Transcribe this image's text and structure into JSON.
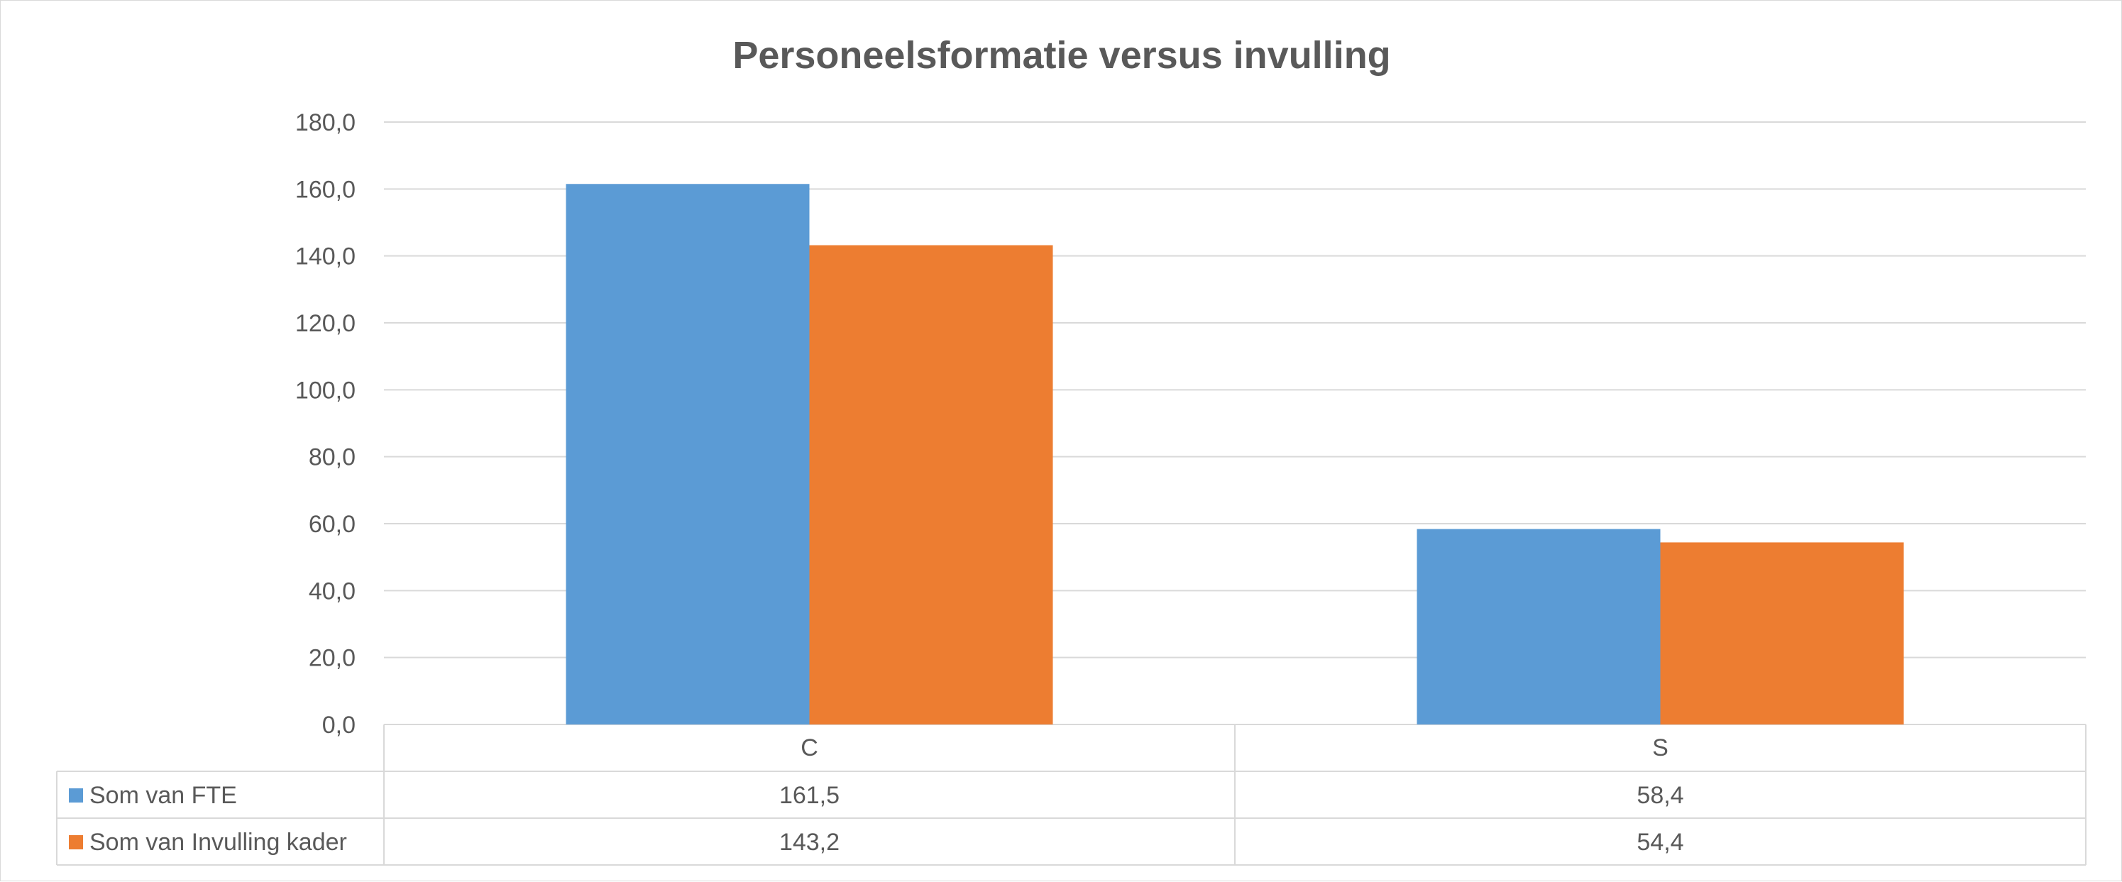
{
  "chart_data": {
    "type": "bar",
    "title": "Personeelsformatie versus invulling",
    "xlabel": "",
    "ylabel": "",
    "categories": [
      "C",
      "S"
    ],
    "series": [
      {
        "name": "Som van FTE",
        "values": [
          161.5,
          58.4
        ],
        "labels": [
          "161,5",
          "58,4"
        ],
        "color": "#5b9bd5"
      },
      {
        "name": "Som van Invulling kader",
        "values": [
          143.2,
          54.4
        ],
        "labels": [
          "143,2",
          "54,4"
        ],
        "color": "#ed7d31"
      }
    ],
    "ylim": [
      0,
      180
    ],
    "yticks": [
      0,
      20,
      40,
      60,
      80,
      100,
      120,
      140,
      160,
      180
    ],
    "ytick_labels": [
      "0,0",
      "20,0",
      "40,0",
      "60,0",
      "80,0",
      "100,0",
      "120,0",
      "140,0",
      "160,0",
      "180,0"
    ],
    "grid": true,
    "legend": "data-table-below",
    "colors": {
      "grid": "#d9d9d9",
      "text": "#595959",
      "border": "#d9d9d9"
    }
  }
}
